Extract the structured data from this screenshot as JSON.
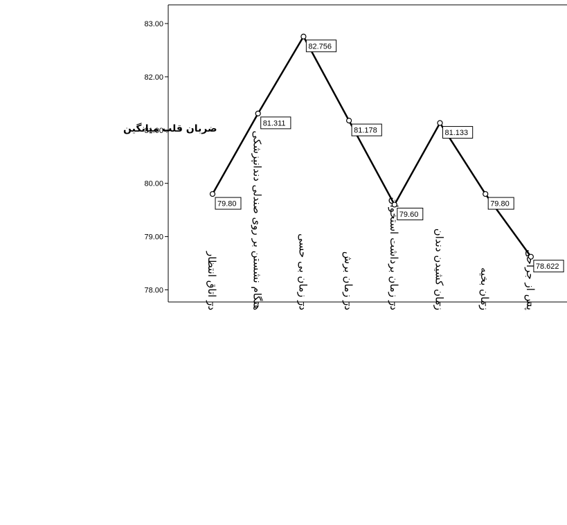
{
  "chart_data": {
    "type": "line",
    "title": "",
    "xlabel": "",
    "ylabel": "ضربان قلب میانگین",
    "categories": [
      "در اتاق انتظار",
      "هنگام نشستن بر روی صندلی دندانپزشکی",
      "در زمان بی حسی",
      "در زمان برش",
      "در زمان برداشت استخوان",
      "زمان کشیدن دندان",
      "زمان بخیه",
      "پس از جراحی"
    ],
    "values": [
      79.8,
      81.311,
      82.756,
      81.178,
      79.6,
      81.133,
      79.8,
      78.622
    ],
    "data_labels": [
      "79.80",
      "81.311",
      "82.756",
      "81.178",
      "79.60",
      "81.133",
      "79.80",
      "78.622"
    ],
    "ylim": [
      77.8,
      83.3
    ],
    "yticks": [
      "78.00",
      "79.00",
      "80.00",
      "81.00",
      "82.00",
      "83.00"
    ],
    "ytick_values": [
      78,
      79,
      80,
      81,
      82,
      83
    ],
    "grid": false,
    "legend": "none",
    "colors": {
      "line": "#000000",
      "label_border": "#000000",
      "background": "#ffffff"
    }
  }
}
